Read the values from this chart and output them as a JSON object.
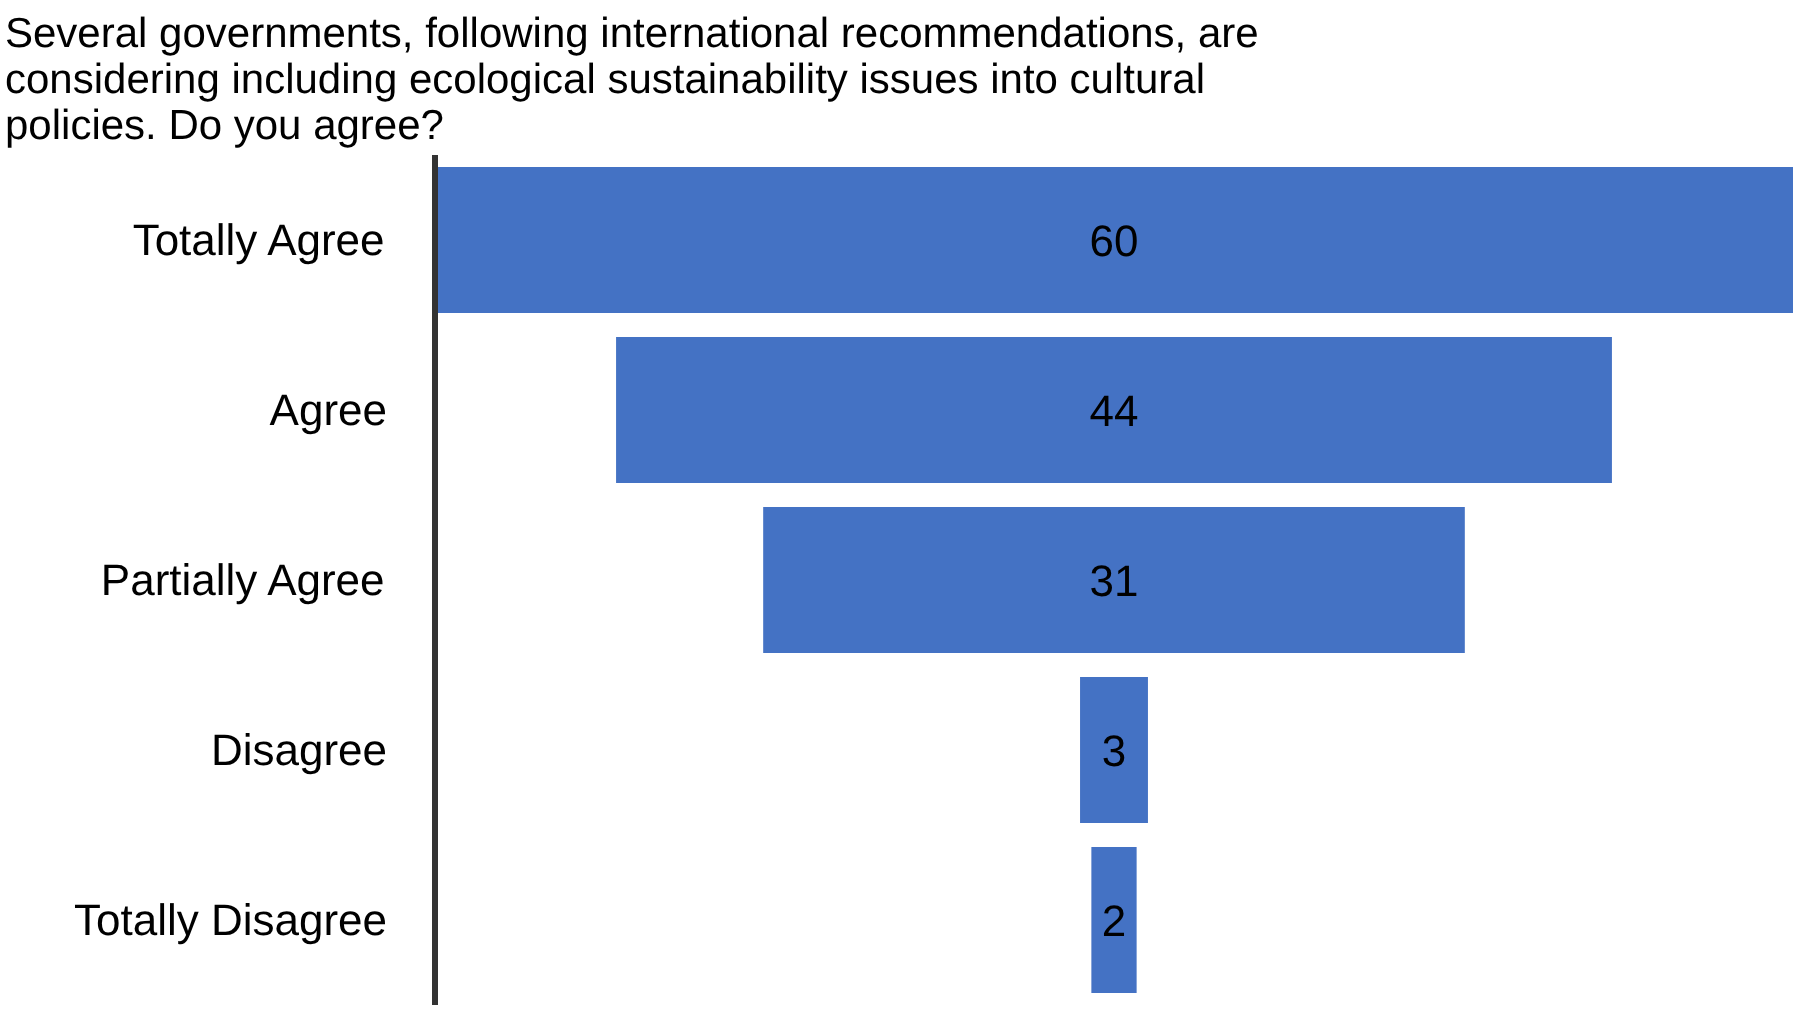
{
  "chart_data": {
    "type": "other",
    "title": "Several governments, following international recommendations, are considering including ecological sustainability issues into cultural policies. Do you agree?",
    "categories": [
      "Totally Agree",
      "Agree",
      "Partially Agree",
      "Disagree",
      "Totally Disagree"
    ],
    "values": [
      60,
      44,
      31,
      3,
      2
    ],
    "color": "#4472c4",
    "data_labels": true
  }
}
